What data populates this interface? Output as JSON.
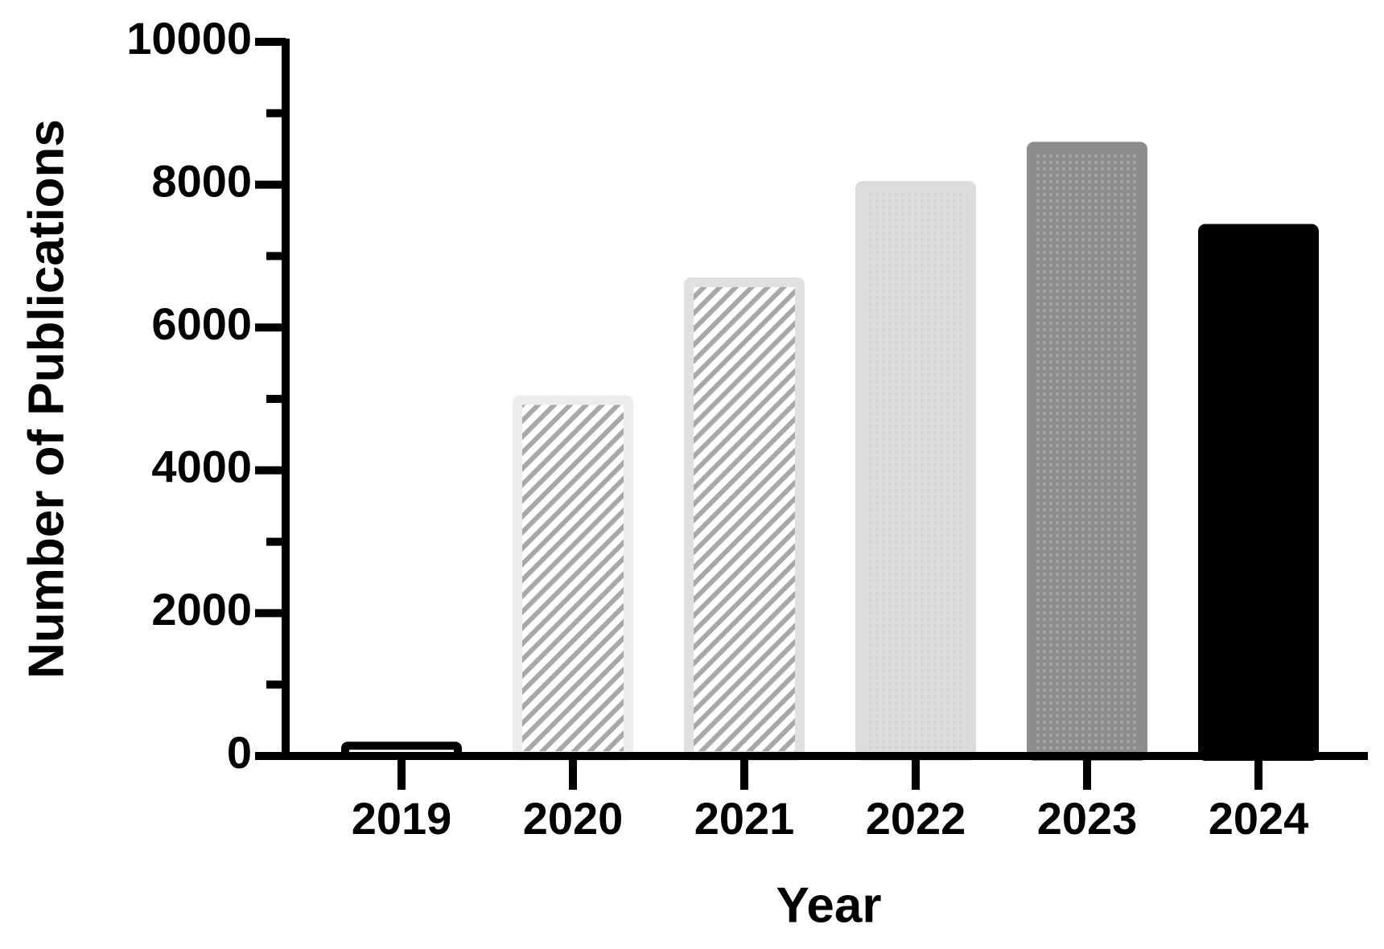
{
  "chart_data": {
    "type": "bar",
    "x_label": "Year",
    "y_label": "Number of Publications",
    "categories": [
      "2019",
      "2020",
      "2021",
      "2022",
      "2023",
      "2024"
    ],
    "values": [
      200,
      5050,
      6700,
      8050,
      8600,
      7450
    ],
    "colors": [
      "#ffffff",
      "#a8a8a8",
      "#a8a8a8",
      "#dcdcdc",
      "#8c8c8c",
      "#000000"
    ],
    "borders": [
      "#000000",
      "#ececec",
      "#e0e0e0",
      "#dcdcdc",
      "#8c8c8c",
      "#000000"
    ],
    "patterns": [
      "solid",
      "hatch",
      "hatch",
      "dots",
      "dots",
      "solid"
    ],
    "ylim": [
      0,
      10000
    ],
    "yticks": [
      0,
      2000,
      4000,
      6000,
      8000,
      10000
    ],
    "yminor_ticks": [
      1000,
      3000,
      5000,
      7000,
      9000
    ]
  }
}
